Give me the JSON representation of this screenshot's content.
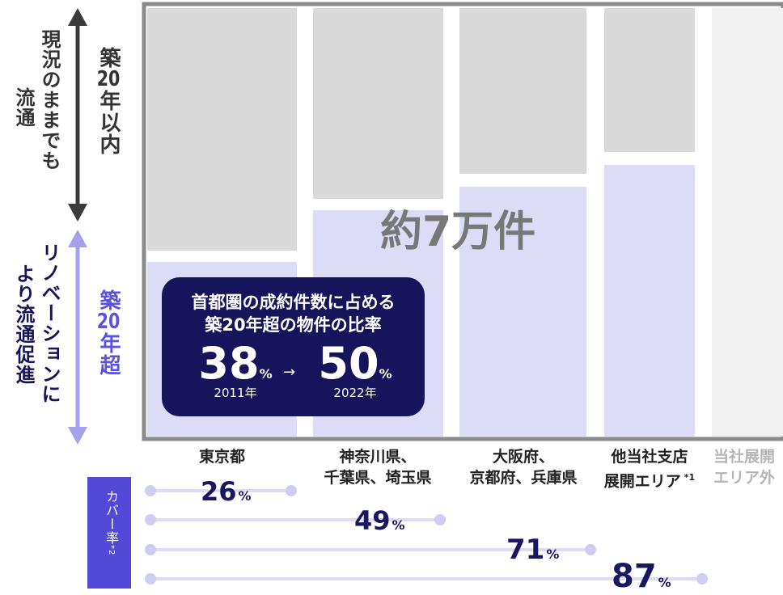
{
  "left_axis": {
    "upper": {
      "lines": [
        "現況のままでも",
        "流通"
      ],
      "age": [
        "築",
        "20",
        "年以内"
      ]
    },
    "lower": {
      "lines": [
        "リノベーションに",
        "より流通促進"
      ],
      "age": [
        "築",
        "20",
        "年超"
      ]
    }
  },
  "center_label": "約7万件",
  "callout": {
    "title_lines": [
      "首都圏の成約件数に占める",
      "築20年超の物件の比率"
    ],
    "from": {
      "value": 38,
      "unit": "%",
      "year": "2011年"
    },
    "arrow": "→",
    "to": {
      "value": 50,
      "unit": "%",
      "year": "2022年"
    }
  },
  "regions": [
    {
      "lines": [
        "東京都"
      ]
    },
    {
      "lines": [
        "神奈川県、",
        "千葉県、埼玉県"
      ]
    },
    {
      "lines": [
        "大阪府、",
        "京都府、兵庫県"
      ]
    },
    {
      "lines": [
        "他当社支店",
        "展開エリア"
      ],
      "note": "*1"
    },
    {
      "lines": [
        "当社展開",
        "エリア外"
      ]
    }
  ],
  "coverage": {
    "label": "カバー率",
    "note": "*2",
    "items": [
      {
        "value": 26,
        "unit": "%"
      },
      {
        "value": 49,
        "unit": "%"
      },
      {
        "value": 71,
        "unit": "%"
      },
      {
        "value": 87,
        "unit": "%"
      }
    ]
  }
}
